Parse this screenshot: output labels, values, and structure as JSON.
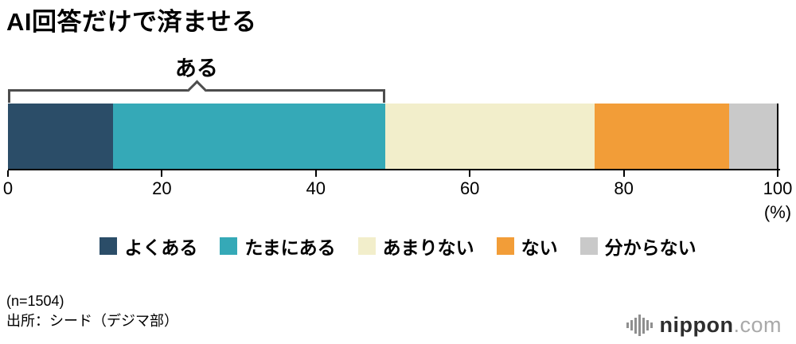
{
  "title": "AI回答だけで済ませる",
  "chart_data": {
    "type": "bar",
    "orientation": "horizontal-stacked",
    "title": "AI回答だけで済ませる",
    "categories": [
      "よくある",
      "たまにある",
      "あまりない",
      "ない",
      "分からない"
    ],
    "values": [
      13.6,
      35.4,
      27.2,
      17.5,
      6.3
    ],
    "colors": [
      "#2b4d68",
      "#35a9b7",
      "#f2eecb",
      "#f29d38",
      "#c9c9c9"
    ],
    "x_ticks": [
      0,
      20,
      40,
      60,
      80,
      100
    ],
    "xlim": [
      0,
      100
    ],
    "x_unit": "(%)",
    "grid": false,
    "legend_position": "bottom",
    "annotation": {
      "label": "ある",
      "from": 0,
      "to": 49.0
    }
  },
  "legend": [
    {
      "label": "よくある",
      "color": "#2b4d68"
    },
    {
      "label": "たまにある",
      "color": "#35a9b7"
    },
    {
      "label": "あまりない",
      "color": "#f2eecb"
    },
    {
      "label": "ない",
      "color": "#f29d38"
    },
    {
      "label": "分からない",
      "color": "#c9c9c9"
    }
  ],
  "footnotes": {
    "sample": "(n=1504)",
    "source": "出所：シード（デジマ部）"
  },
  "logo": {
    "name": "nippon",
    "tld": ".com"
  }
}
